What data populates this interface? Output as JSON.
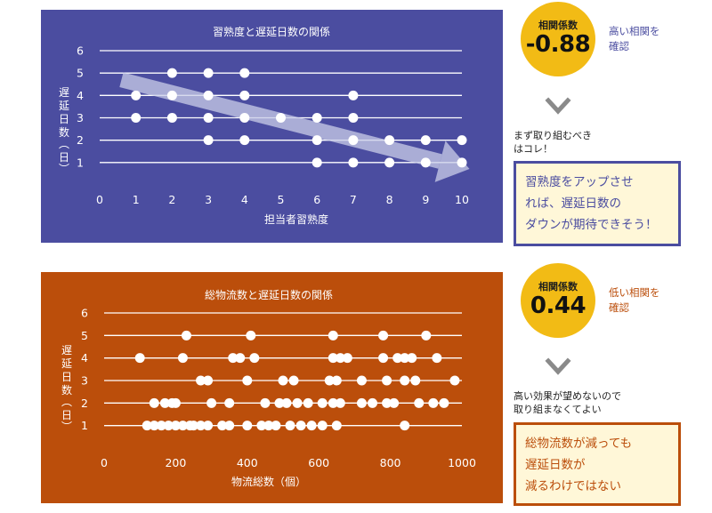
{
  "chart_data": [
    {
      "type": "scatter",
      "title": "習熟度と遅延日数の関係",
      "xlabel": "担当者習熟度",
      "ylabel": "遅延日数（日）",
      "xlim": [
        0,
        10
      ],
      "ylim": [
        0,
        6
      ],
      "xticks": [
        0,
        1,
        2,
        3,
        4,
        5,
        6,
        7,
        8,
        9,
        10
      ],
      "yticks": [
        1,
        2,
        3,
        4,
        5,
        6
      ],
      "grid": "horizontal",
      "trend_arrow": true,
      "points": [
        [
          1,
          4
        ],
        [
          1,
          3
        ],
        [
          2,
          5
        ],
        [
          2,
          4
        ],
        [
          2,
          3
        ],
        [
          3,
          5
        ],
        [
          3,
          4
        ],
        [
          3,
          3
        ],
        [
          3,
          2
        ],
        [
          4,
          5
        ],
        [
          4,
          4
        ],
        [
          4,
          3
        ],
        [
          4,
          2
        ],
        [
          5,
          3
        ],
        [
          6,
          3
        ],
        [
          6,
          2
        ],
        [
          6,
          1
        ],
        [
          7,
          4
        ],
        [
          7,
          3
        ],
        [
          7,
          2
        ],
        [
          7,
          1
        ],
        [
          8,
          2
        ],
        [
          8,
          1
        ],
        [
          9,
          2
        ],
        [
          9,
          1
        ],
        [
          10,
          2
        ],
        [
          10,
          1
        ]
      ]
    },
    {
      "type": "scatter",
      "title": "総物流数と遅延日数の関係",
      "xlabel": "物流総数（個）",
      "ylabel": "遅延日数（日）",
      "xlim": [
        0,
        1000
      ],
      "ylim": [
        0,
        6
      ],
      "xticks": [
        0,
        200,
        400,
        600,
        800,
        1000
      ],
      "yticks": [
        1,
        2,
        3,
        4,
        5,
        6
      ],
      "grid": "horizontal",
      "points": [
        [
          230,
          5
        ],
        [
          410,
          5
        ],
        [
          640,
          5
        ],
        [
          780,
          5
        ],
        [
          900,
          5
        ],
        [
          100,
          4
        ],
        [
          220,
          4
        ],
        [
          360,
          4
        ],
        [
          380,
          4
        ],
        [
          420,
          4
        ],
        [
          640,
          4
        ],
        [
          660,
          4
        ],
        [
          680,
          4
        ],
        [
          780,
          4
        ],
        [
          820,
          4
        ],
        [
          840,
          4
        ],
        [
          860,
          4
        ],
        [
          930,
          4
        ],
        [
          270,
          3
        ],
        [
          290,
          3
        ],
        [
          400,
          3
        ],
        [
          500,
          3
        ],
        [
          530,
          3
        ],
        [
          630,
          3
        ],
        [
          650,
          3
        ],
        [
          720,
          3
        ],
        [
          790,
          3
        ],
        [
          840,
          3
        ],
        [
          870,
          3
        ],
        [
          980,
          3
        ],
        [
          140,
          2
        ],
        [
          170,
          2
        ],
        [
          190,
          2
        ],
        [
          200,
          2
        ],
        [
          300,
          2
        ],
        [
          350,
          2
        ],
        [
          450,
          2
        ],
        [
          490,
          2
        ],
        [
          510,
          2
        ],
        [
          540,
          2
        ],
        [
          570,
          2
        ],
        [
          610,
          2
        ],
        [
          640,
          2
        ],
        [
          660,
          2
        ],
        [
          720,
          2
        ],
        [
          750,
          2
        ],
        [
          790,
          2
        ],
        [
          810,
          2
        ],
        [
          880,
          2
        ],
        [
          920,
          2
        ],
        [
          950,
          2
        ],
        [
          120,
          1
        ],
        [
          140,
          1
        ],
        [
          160,
          1
        ],
        [
          180,
          1
        ],
        [
          200,
          1
        ],
        [
          220,
          1
        ],
        [
          240,
          1
        ],
        [
          250,
          1
        ],
        [
          270,
          1
        ],
        [
          290,
          1
        ],
        [
          330,
          1
        ],
        [
          350,
          1
        ],
        [
          400,
          1
        ],
        [
          440,
          1
        ],
        [
          460,
          1
        ],
        [
          480,
          1
        ],
        [
          520,
          1
        ],
        [
          550,
          1
        ],
        [
          580,
          1
        ],
        [
          610,
          1
        ],
        [
          650,
          1
        ],
        [
          840,
          1
        ]
      ]
    }
  ],
  "top": {
    "badge_label": "相関係数",
    "badge_value": "-0.88",
    "note_line1": "高い相関を",
    "note_line2": "確認",
    "comment_line1": "まず取り組むべき",
    "comment_line2": "はコレ！",
    "box_line1": "習熟度をアップさせ",
    "box_line2": "れば、遅延日数の",
    "box_line3": "ダウンが期待できそう！"
  },
  "bottom": {
    "badge_label": "相関係数",
    "badge_value": "0.44",
    "note_line1": "低い相関を",
    "note_line2": "確認",
    "comment_line1": "高い効果が望めないので",
    "comment_line2": "取り組まなくてよい",
    "box_line1": "総物流数が減っても",
    "box_line2": "遅延日数が",
    "box_line3": "減るわけではない"
  },
  "colors": {
    "top_panel": "#4b4da0",
    "bottom_panel": "#bb4e0b",
    "badge": "#f2bb15",
    "top_note": "#4b4da0",
    "bottom_note": "#bb4e0b",
    "box_fill": "#fff7d8",
    "arrow_gray": "#8a8a8a"
  },
  "icons": {
    "down_arrow": "chevron-down-arrow-icon",
    "trend_arrow": "trend-arrow-icon"
  }
}
